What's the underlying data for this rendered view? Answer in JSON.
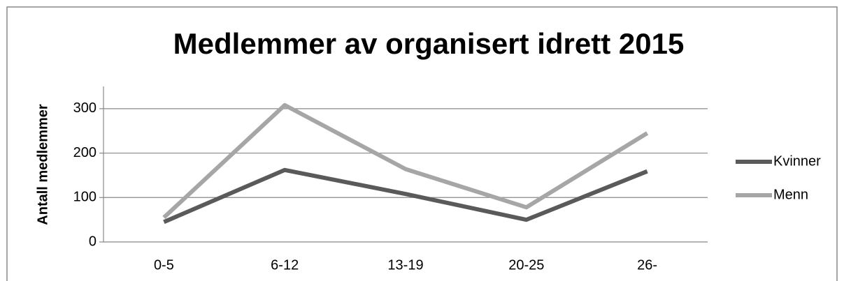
{
  "chart_data": {
    "type": "line",
    "title": "Medlemmer av organisert idrett  2015",
    "ylabel": "Antall medlemmer",
    "categories": [
      "0-5",
      "6-12",
      "13-19",
      "20-25",
      "26-"
    ],
    "series": [
      {
        "name": "Kvinner",
        "color": "#5a5a5a",
        "values": [
          45,
          162,
          108,
          50,
          159
        ]
      },
      {
        "name": "Menn",
        "color": "#a6a6a6",
        "values": [
          55,
          308,
          164,
          78,
          245
        ]
      }
    ],
    "ylim": [
      0,
      350
    ],
    "yticks": [
      0,
      100,
      200,
      300
    ],
    "grid": true,
    "legend": "right"
  }
}
